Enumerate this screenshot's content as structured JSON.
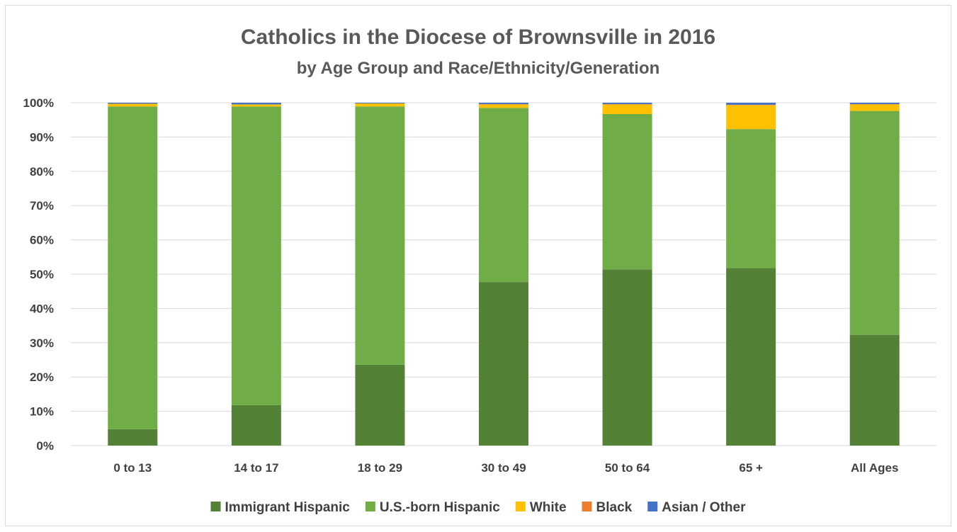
{
  "chart_data": {
    "type": "bar",
    "stacked": true,
    "title": "Catholics in the Diocese of Brownsville in 2016",
    "subtitle": "by Age Group and Race/Ethnicity/Generation",
    "xlabel": "",
    "ylabel": "",
    "ylim": [
      0,
      100
    ],
    "yticks": [
      "0%",
      "10%",
      "20%",
      "30%",
      "40%",
      "50%",
      "60%",
      "70%",
      "80%",
      "90%",
      "100%"
    ],
    "grid": true,
    "legend_position": "bottom",
    "categories": [
      "0 to 13",
      "14 to 17",
      "18 to 29",
      "30 to 49",
      "50 to 64",
      "65 +",
      "All Ages"
    ],
    "series": [
      {
        "name": "Immigrant Hispanic",
        "color": "#538135",
        "values": [
          4.8,
          11.8,
          23.6,
          47.7,
          51.4,
          51.8,
          32.3
        ]
      },
      {
        "name": "U.S.-born Hispanic",
        "color": "#70ad47",
        "values": [
          94.1,
          87.1,
          75.3,
          50.8,
          45.3,
          40.5,
          65.3
        ]
      },
      {
        "name": "White",
        "color": "#ffc000",
        "values": [
          0.8,
          0.6,
          0.9,
          1.0,
          2.8,
          7.0,
          1.9
        ]
      },
      {
        "name": "Black",
        "color": "#ed7d31",
        "values": [
          0.0,
          0.0,
          0.0,
          0.1,
          0.1,
          0.1,
          0.1
        ]
      },
      {
        "name": "Asian / Other",
        "color": "#4472c4",
        "values": [
          0.3,
          0.5,
          0.2,
          0.4,
          0.4,
          0.6,
          0.4
        ]
      }
    ]
  }
}
